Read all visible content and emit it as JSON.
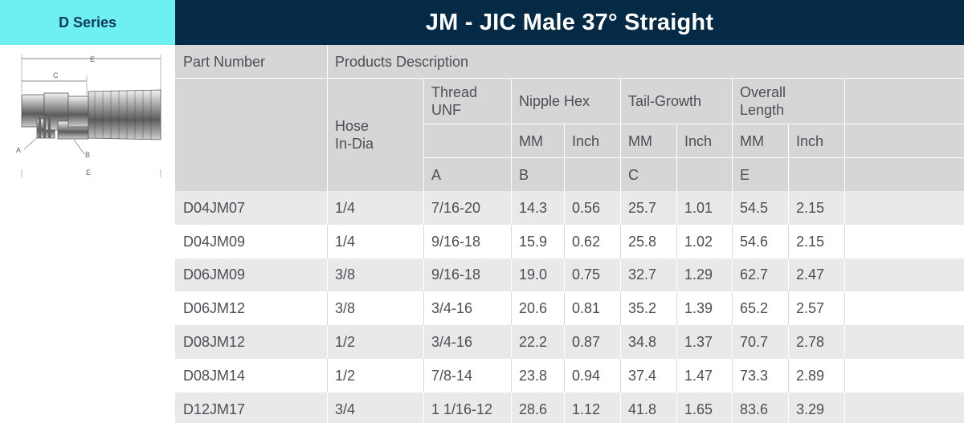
{
  "series_label": "D Series",
  "title": "JM - JIC Male 37° Straight",
  "drawing": {
    "labels": {
      "e_top": "E",
      "c": "C",
      "a": "A",
      "b": "B",
      "e_bottom": "E"
    }
  },
  "table": {
    "part_number": "Part Number",
    "products_description": "Products Description",
    "hose_in_dia": [
      "Hose",
      "In-Dia"
    ],
    "thread_unf": [
      "Thread",
      "UNF"
    ],
    "nipple_hex": "Nipple Hex",
    "tail_growth": "Tail-Growth",
    "overall_length": [
      "Overall",
      "Length"
    ],
    "mm": "MM",
    "inch": "Inch",
    "dim_a": "A",
    "dim_b": "B",
    "dim_c": "C",
    "dim_e": "E",
    "rows": [
      [
        "D04JM07",
        "1/4",
        "7/16-20",
        "14.3",
        "0.56",
        "25.7",
        "1.01",
        "54.5",
        "2.15"
      ],
      [
        "D04JM09",
        "1/4",
        "9/16-18",
        "15.9",
        "0.62",
        "25.8",
        "1.02",
        "54.6",
        "2.15"
      ],
      [
        "D06JM09",
        "3/8",
        "9/16-18",
        "19.0",
        "0.75",
        "32.7",
        "1.29",
        "62.7",
        "2.47"
      ],
      [
        "D06JM12",
        "3/8",
        "3/4-16",
        "20.6",
        "0.81",
        "35.2",
        "1.39",
        "65.2",
        "2.57"
      ],
      [
        "D08JM12",
        "1/2",
        "3/4-16",
        "22.2",
        "0.87",
        "34.8",
        "1.37",
        "70.7",
        "2.78"
      ],
      [
        "D08JM14",
        "1/2",
        "7/8-14",
        "23.8",
        "0.94",
        "37.4",
        "1.47",
        "73.3",
        "2.89"
      ],
      [
        "D12JM17",
        "3/4",
        "1 1/16-12",
        "28.6",
        "1.12",
        "41.8",
        "1.65",
        "83.6",
        "3.29"
      ]
    ]
  }
}
